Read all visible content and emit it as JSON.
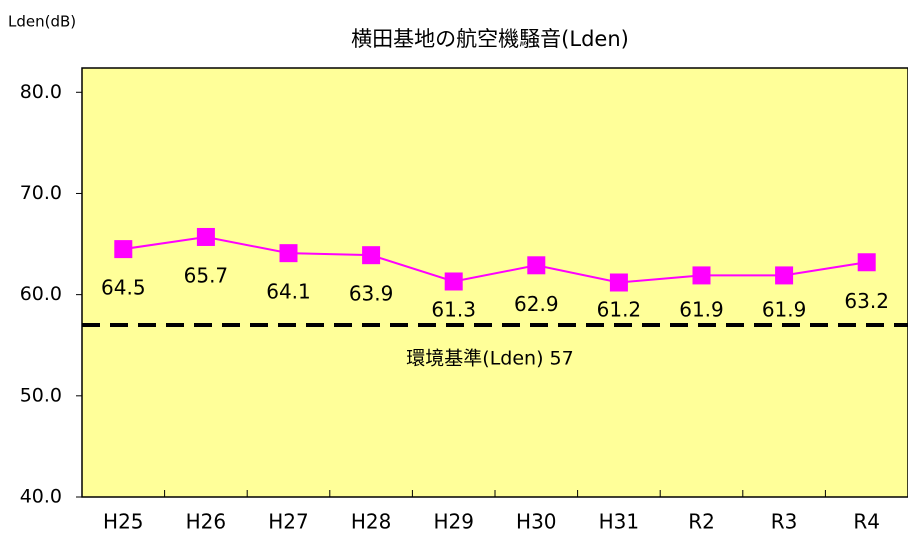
{
  "chart_data": {
    "type": "line",
    "title": "横田基地の航空機騒音(Lden)",
    "y_axis_label": "Lden(dB)",
    "categories": [
      "H25",
      "H26",
      "H27",
      "H28",
      "H29",
      "H30",
      "H31",
      "R2",
      "R3",
      "R4"
    ],
    "series": [
      {
        "name": "Lden",
        "color": "#ff00ff",
        "values": [
          64.5,
          65.7,
          64.1,
          63.9,
          61.3,
          62.9,
          61.2,
          61.9,
          61.9,
          63.2
        ]
      }
    ],
    "ylim": [
      40,
      82.4
    ],
    "yticks": [
      {
        "value": 40,
        "label": "40.0"
      },
      {
        "value": 50,
        "label": "50.0"
      },
      {
        "value": 60,
        "label": "60.0"
      },
      {
        "value": 70,
        "label": "70.0"
      },
      {
        "value": 80,
        "label": "80.0"
      }
    ],
    "reference_line": {
      "value": 57,
      "label": "環境基準(Lden) 57",
      "color": "#000000"
    },
    "plot_background": "#ffff99"
  }
}
